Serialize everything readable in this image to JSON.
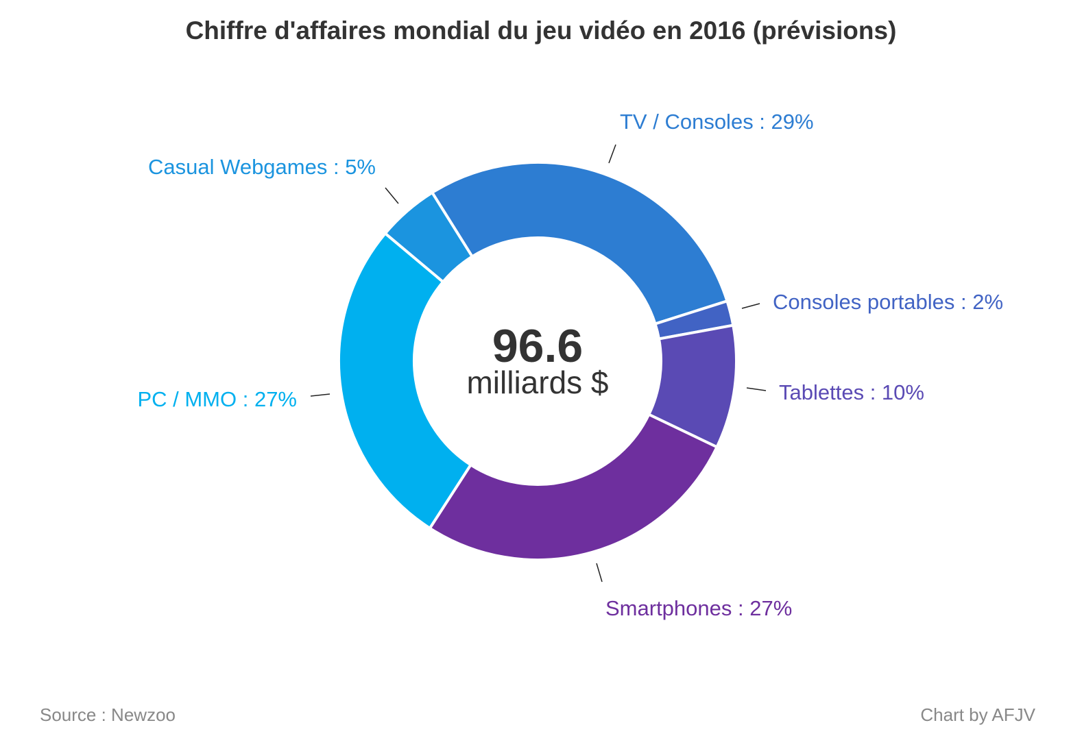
{
  "chart_data": {
    "type": "donut",
    "title": "Chiffre d'affaires mondial du jeu vidéo en 2016 (prévisions)",
    "center_value": "96.6",
    "center_unit": "milliards $",
    "start_angle_deg": -32,
    "slices": [
      {
        "label": "TV / Consoles : 29%",
        "name": "TV / Consoles",
        "value": 29,
        "color": "#2d7dd2"
      },
      {
        "label": "Consoles portables : 2%",
        "name": "Consoles portables",
        "value": 2,
        "color": "#4163c4"
      },
      {
        "label": "Tablettes : 10%",
        "name": "Tablettes",
        "value": 10,
        "color": "#5a4ab4"
      },
      {
        "label": "Smartphones : 27%",
        "name": "Smartphones",
        "value": 27,
        "color": "#6e2f9e"
      },
      {
        "label": "PC / MMO : 27%",
        "name": "PC / MMO",
        "value": 27,
        "color": "#00b0ef"
      },
      {
        "label": "Casual Webgames : 5%",
        "name": "Casual Webgames",
        "value": 5,
        "color": "#1b94df"
      }
    ]
  },
  "footer": {
    "source": "Source : Newzoo",
    "credit": "Chart by AFJV"
  }
}
